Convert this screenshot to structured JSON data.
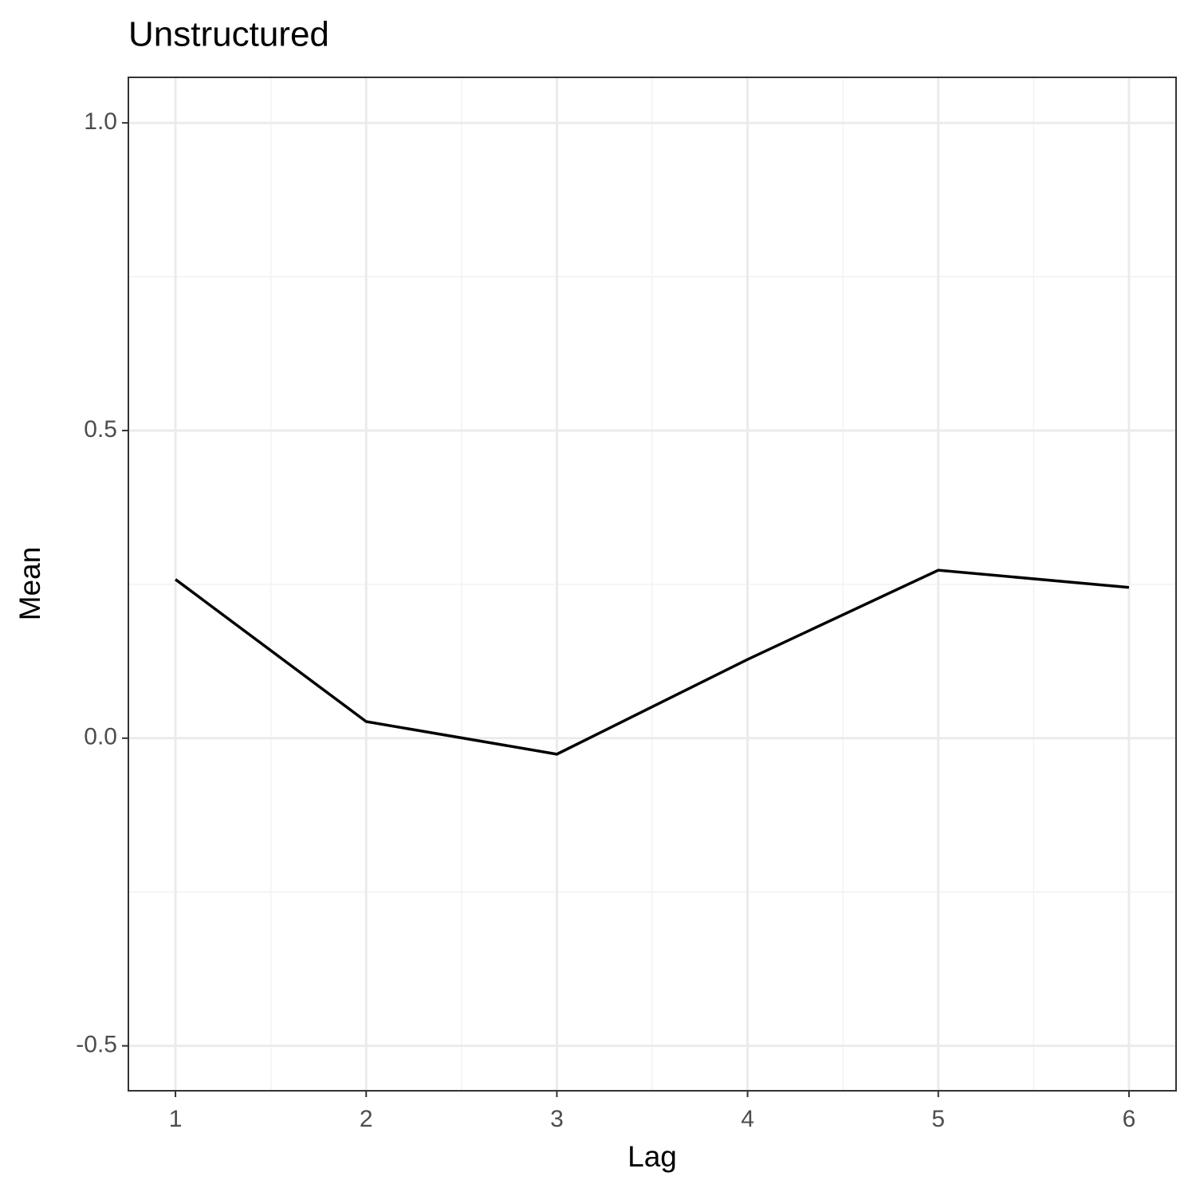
{
  "chart_data": {
    "type": "line",
    "title": "Unstructured",
    "x_label": "Lag",
    "y_label": "Mean",
    "x": [
      1,
      2,
      3,
      4,
      5,
      6
    ],
    "values": [
      0.258,
      0.027,
      -0.026,
      0.128,
      0.273,
      0.245
    ],
    "color": "#000000",
    "xlim": [
      0.753,
      6.247
    ],
    "xticks": [
      1,
      2,
      3,
      4,
      5,
      6
    ],
    "ylim": [
      -0.573,
      1.074
    ],
    "yticks": [
      -0.5,
      {
        "value": 0,
        "label": "0.0"
      },
      0.5,
      {
        "value": 1,
        "label": "1.0"
      }
    ],
    "grid": true,
    "minor_grid": true
  }
}
